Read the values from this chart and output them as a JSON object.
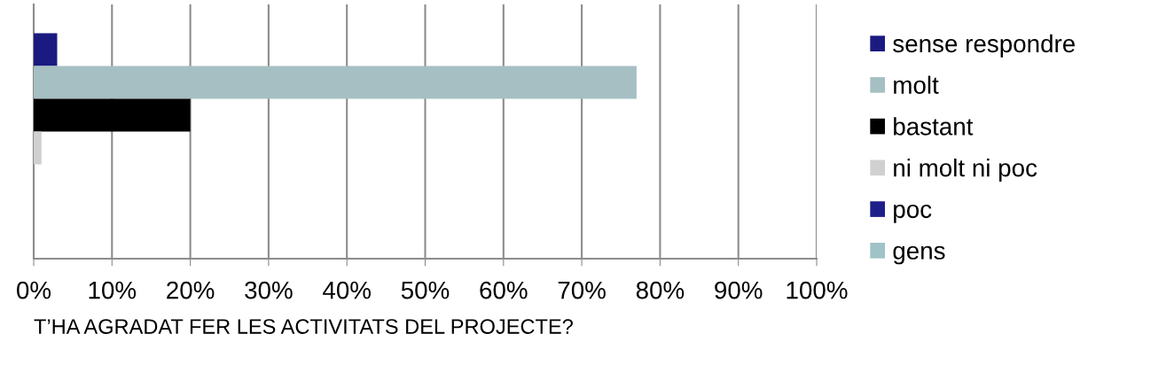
{
  "chart_data": {
    "type": "bar",
    "orientation": "horizontal",
    "xlabel": "T’HA AGRADAT FER LES ACTIVITATS DEL PROJECTE?",
    "categories": [
      null
    ],
    "series": [
      {
        "name": "sense respondre",
        "color": "#1a1a80",
        "values": [
          3
        ]
      },
      {
        "name": "molt",
        "color": "#a6bfc2",
        "values": [
          77
        ]
      },
      {
        "name": "bastant",
        "color": "#000000",
        "values": [
          20
        ]
      },
      {
        "name": "ni molt ni poc",
        "color": "#d0d0d0",
        "values": [
          1
        ]
      },
      {
        "name": "poc",
        "color": "#1f1f8a",
        "values": [
          0
        ]
      },
      {
        "name": "gens",
        "color": "#9fc3c6",
        "values": [
          0
        ]
      }
    ],
    "xlim": [
      0,
      100
    ],
    "xticks": [
      {
        "value": 0,
        "label": "0%"
      },
      {
        "value": 10,
        "label": "10%"
      },
      {
        "value": 20,
        "label": "20%"
      },
      {
        "value": 30,
        "label": "30%"
      },
      {
        "value": 40,
        "label": "40%"
      },
      {
        "value": 50,
        "label": "50%"
      },
      {
        "value": 60,
        "label": "60%"
      },
      {
        "value": 70,
        "label": "70%"
      },
      {
        "value": 80,
        "label": "80%"
      },
      {
        "value": 90,
        "label": "90%"
      },
      {
        "value": 100,
        "label": "100%"
      }
    ],
    "grid": "x",
    "legend": "right"
  }
}
